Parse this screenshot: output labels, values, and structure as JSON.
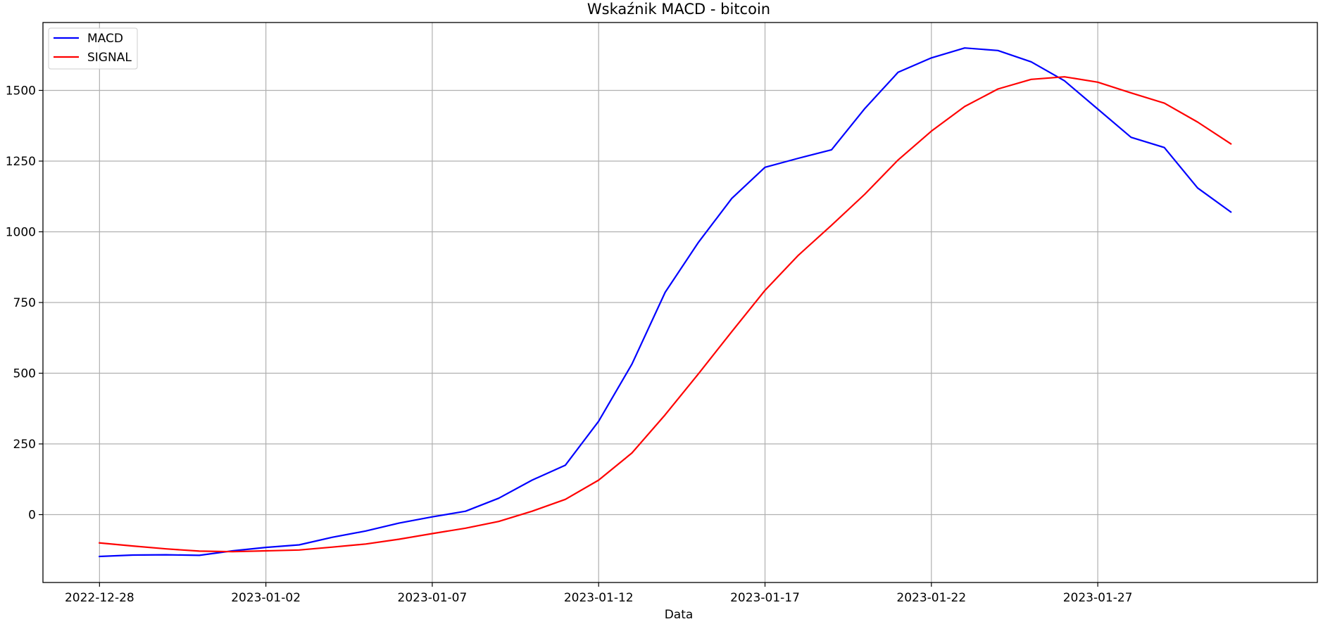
{
  "chart_data": {
    "type": "line",
    "title": "Wskaźnik MACD - bitcoin",
    "xlabel": "Data",
    "ylabel": "",
    "x": [
      "2022-12-28",
      "2022-12-29",
      "2022-12-30",
      "2022-12-31",
      "2023-01-01",
      "2023-01-02",
      "2023-01-03",
      "2023-01-04",
      "2023-01-05",
      "2023-01-06",
      "2023-01-07",
      "2023-01-08",
      "2023-01-09",
      "2023-01-10",
      "2023-01-11",
      "2023-01-12",
      "2023-01-13",
      "2023-01-14",
      "2023-01-15",
      "2023-01-16",
      "2023-01-17",
      "2023-01-18",
      "2023-01-19",
      "2023-01-20",
      "2023-01-21",
      "2023-01-22",
      "2023-01-23",
      "2023-01-24",
      "2023-01-25",
      "2023-01-26",
      "2023-01-27",
      "2023-01-28",
      "2023-01-29",
      "2023-01-30",
      "2023-01-31"
    ],
    "x_ticks": [
      "2022-12-28",
      "2023-01-02",
      "2023-01-07",
      "2023-01-12",
      "2023-01-17",
      "2023-01-22",
      "2023-01-27"
    ],
    "xlim": [
      "2022-12-26.3",
      "2023-02-02.6"
    ],
    "y_ticks": [
      0,
      250,
      500,
      750,
      1000,
      1250,
      1500
    ],
    "ylim": [
      -240,
      1740
    ],
    "grid": true,
    "legend_position": "top-left",
    "series": [
      {
        "name": "MACD",
        "color": "#0000ff",
        "values": [
          -148,
          -143,
          -142,
          -144,
          -128,
          -116,
          -107,
          -80,
          -58,
          -30,
          -8,
          12,
          58,
          122,
          175,
          330,
          532,
          786,
          963,
          1118,
          1228,
          1260,
          1290,
          1436,
          1564,
          1615,
          1650,
          1641,
          1601,
          1534,
          1434,
          1334,
          1298,
          1155,
          1070
        ]
      },
      {
        "name": "SIGNAL",
        "color": "#ff0000",
        "values": [
          -100,
          -111,
          -121,
          -129,
          -131,
          -128,
          -125,
          -115,
          -104,
          -87,
          -67,
          -48,
          -24,
          12,
          54,
          122,
          218,
          353,
          498,
          647,
          793,
          917,
          1023,
          1133,
          1254,
          1356,
          1443,
          1505,
          1539,
          1548,
          1529,
          1491,
          1455,
          1388,
          1311
        ]
      }
    ]
  }
}
